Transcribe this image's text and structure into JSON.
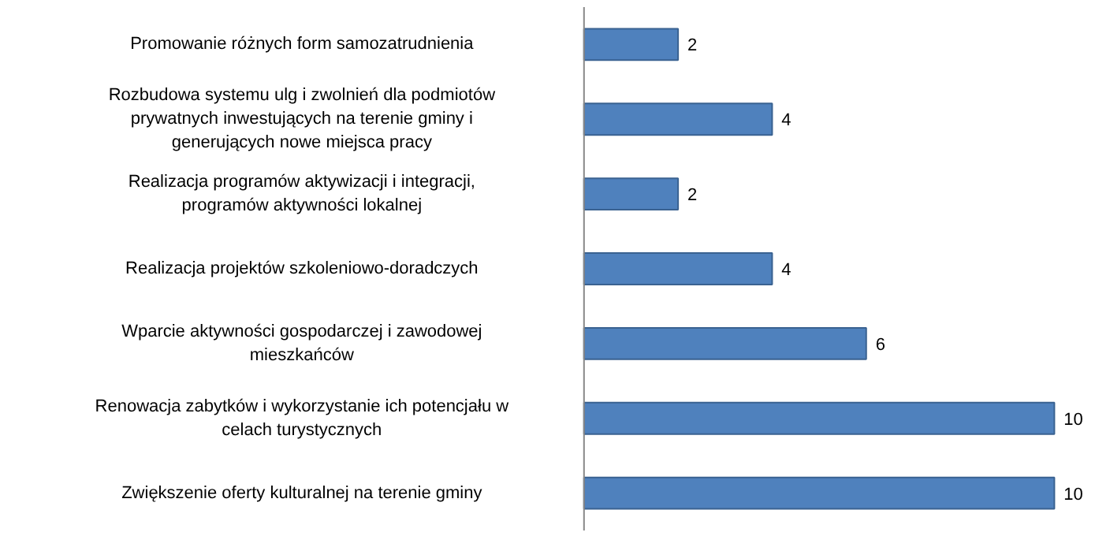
{
  "chart_data": {
    "type": "bar",
    "orientation": "horizontal",
    "categories": [
      "Promowanie różnych form samozatrudnienia",
      "Rozbudowa systemu ulg i zwolnień dla podmiotów\nprywatnych inwestujących na terenie gminy i\ngenerujących nowe miejsca pracy",
      "Realizacja programów aktywizacji i integracji,\nprogramów aktywności lokalnej",
      "Realizacja projektów szkoleniowo-doradczych",
      "Wparcie aktywności gospodarczej i zawodowej\nmieszkańców",
      "Renowacja zabytków i wykorzystanie ich potencjału w\ncelach turystycznych",
      "Zwiększenie oferty kulturalnej na terenie gminy"
    ],
    "values": [
      2,
      4,
      2,
      4,
      6,
      10,
      10
    ],
    "color": "#4f81bd",
    "data_labels": true,
    "grid": false
  }
}
